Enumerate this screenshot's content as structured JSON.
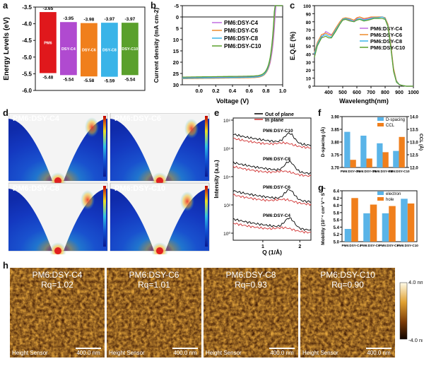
{
  "panel_labels": {
    "a": "a",
    "b": "b",
    "c": "c",
    "d": "d",
    "e": "e",
    "f": "f",
    "g": "g",
    "h": "h"
  },
  "chart_data": [
    {
      "panel": "a",
      "type": "bar",
      "ylabel": "Energy Levels (eV)",
      "ylim": [
        -6.0,
        -3.5
      ],
      "yticks": [
        "-3.5",
        "-4.0",
        "-4.5",
        "-5.0",
        "-5.5",
        "-6.0"
      ],
      "categories": [
        "PM6",
        "DSY-C4",
        "DSY-C6",
        "DSY-C8",
        "DSY-C10"
      ],
      "lumo": [
        -3.65,
        -3.95,
        -3.98,
        -3.97,
        -3.97
      ],
      "homo": [
        -5.48,
        -5.54,
        -5.58,
        -5.59,
        -5.54
      ],
      "lumo_labels": [
        "-3.65",
        "-3.95",
        "-3.98",
        "-3.97",
        "-3.97"
      ],
      "homo_labels": [
        "-5.48",
        "-5.54",
        "-5.58",
        "-5.59",
        "-5.54"
      ],
      "colors": [
        "#e0181c",
        "#b04ad0",
        "#f07f1c",
        "#3ab4e8",
        "#5aa02c"
      ]
    },
    {
      "panel": "b",
      "type": "line",
      "xlabel": "Voltage (V)",
      "ylabel": "Current density (mA cm-2)",
      "xlim": [
        -0.2,
        1.0
      ],
      "ylim": [
        30,
        -5
      ],
      "xticks": [
        "0.0",
        "0.2",
        "0.4",
        "0.6",
        "0.8",
        "1.0"
      ],
      "yticks": [
        "-5",
        "0",
        "5",
        "10",
        "15",
        "20",
        "25",
        "30"
      ],
      "series": [
        {
          "name": "PM6:DSY-C4",
          "color": "#c06ee0",
          "jsc": 26.8,
          "voc": 0.905
        },
        {
          "name": "PM6:DSY-C6",
          "color": "#ee8a2c",
          "jsc": 27.2,
          "voc": 0.898
        },
        {
          "name": "PM6:DSY-C8",
          "color": "#3ab4e8",
          "jsc": 27.0,
          "voc": 0.895
        },
        {
          "name": "PM6:DSY-C10",
          "color": "#5aa02c",
          "jsc": 26.5,
          "voc": 0.893
        }
      ]
    },
    {
      "panel": "c",
      "type": "line",
      "xlabel": "Wavelength(nm)",
      "ylabel": "E.Q.E (%)",
      "xlim": [
        300,
        1000
      ],
      "ylim": [
        0,
        100
      ],
      "xticks": [
        "400",
        "500",
        "600",
        "700",
        "800",
        "900",
        "1000"
      ],
      "yticks": [
        "0",
        "10",
        "20",
        "30",
        "40",
        "50",
        "60",
        "70",
        "80",
        "90",
        "100"
      ],
      "series": [
        {
          "name": "PM6:DSY-C4",
          "color": "#c06ee0"
        },
        {
          "name": "PM6:DSY-C6",
          "color": "#ee8a2c"
        },
        {
          "name": "PM6:DSY-C8",
          "color": "#3ab4e8"
        },
        {
          "name": "PM6:DSY-C10",
          "color": "#5aa02c"
        }
      ],
      "x": [
        300,
        320,
        350,
        380,
        400,
        420,
        450,
        480,
        500,
        520,
        550,
        580,
        600,
        620,
        650,
        680,
        700,
        720,
        750,
        780,
        800,
        820,
        840,
        860,
        880,
        900,
        920,
        950,
        1000
      ],
      "y": [
        [
          38,
          50,
          60,
          68,
          66,
          64,
          70,
          78,
          82,
          84,
          82,
          81,
          84,
          86,
          83,
          84,
          85,
          85,
          86,
          86,
          85,
          76,
          50,
          20,
          6,
          2,
          1,
          0,
          0
        ],
        [
          42,
          54,
          64,
          66,
          64,
          63,
          72,
          80,
          84,
          85,
          84,
          82,
          85,
          86,
          84,
          85,
          86,
          86,
          86,
          86,
          85,
          77,
          52,
          22,
          7,
          2,
          1,
          0,
          0
        ],
        [
          40,
          52,
          62,
          64,
          62,
          61,
          70,
          78,
          83,
          84,
          83,
          80,
          83,
          84,
          82,
          83,
          84,
          85,
          85,
          86,
          84,
          75,
          49,
          19,
          6,
          2,
          1,
          0,
          0
        ],
        [
          36,
          50,
          60,
          62,
          60,
          60,
          68,
          77,
          82,
          83,
          81,
          80,
          82,
          83,
          81,
          82,
          83,
          84,
          84,
          84,
          83,
          74,
          48,
          18,
          5,
          2,
          1,
          0,
          0
        ]
      ]
    },
    {
      "panel": "e",
      "type": "line",
      "xlabel": "Q (1/Å)",
      "ylabel": "Intensity (a.u.)",
      "yticks": [
        "10⁰",
        "10²",
        "10⁴",
        "10⁶",
        "10⁸"
      ],
      "xticks": [
        "1",
        "2"
      ],
      "series": [
        {
          "name": "Out of plane",
          "color": "#000000"
        },
        {
          "name": "In plane",
          "color": "#d03030"
        }
      ],
      "annotations": [
        "PM6:DSY-C10",
        "PM6:DSY-C8",
        "PM6:DSY-C6",
        "PM6:DSY-C4"
      ]
    },
    {
      "panel": "f",
      "type": "bar",
      "ylabel": "D-spacing (Å)",
      "ylabel_right": "CCL (Å)",
      "categories": [
        "PM6:DSY-C4",
        "PM6:DSY-C6",
        "PM6:DSY-C8",
        "PM6:DSY-C10"
      ],
      "ylim": [
        3.7,
        3.9
      ],
      "ylim_right": [
        12.0,
        14.0
      ],
      "yticks": [
        "3.70",
        "3.75",
        "3.80",
        "3.85",
        "3.90"
      ],
      "yticks_right": [
        "12.0",
        "12.5",
        "13.0",
        "13.5",
        "14.0"
      ],
      "series": [
        {
          "name": "D-spacing",
          "color": "#5ab4e8",
          "values": [
            3.84,
            3.825,
            3.795,
            3.765
          ]
        },
        {
          "name": "CCL",
          "color": "#f07f1c",
          "values": [
            12.3,
            12.35,
            12.6,
            13.2
          ]
        }
      ]
    },
    {
      "panel": "g",
      "type": "bar",
      "ylabel": "Mobility (10⁻⁴ cm² V⁻¹ S⁻¹)",
      "categories": [
        "PM6:DSY-C4",
        "PM6:DSY-C6",
        "PM6:DSY-C8",
        "PM6:DSY-C10"
      ],
      "ylim": [
        5.0,
        6.4
      ],
      "yticks": [
        "5.0",
        "5.2",
        "5.4",
        "5.6",
        "5.8",
        "6.0",
        "6.2",
        "6.4"
      ],
      "series": [
        {
          "name": "electron",
          "color": "#5ab4e8",
          "values": [
            5.35,
            5.78,
            5.78,
            6.18
          ]
        },
        {
          "name": "hole",
          "color": "#f07f1c",
          "values": [
            6.2,
            6.02,
            5.98,
            6.05
          ]
        }
      ]
    }
  ],
  "giwaxs": [
    {
      "title": "PM6:DSY-C4"
    },
    {
      "title": "PM6:DSY-C6"
    },
    {
      "title": "PM6:DSY-C8"
    },
    {
      "title": "PM6:DSY-C10"
    }
  ],
  "afm": {
    "images": [
      {
        "title": "PM6:DSY-C4",
        "rq": "Rq=1.02"
      },
      {
        "title": "PM6:DSY-C6",
        "rq": "Rq=1.01"
      },
      {
        "title": "PM6:DSY-C8",
        "rq": "Rq=0.93"
      },
      {
        "title": "PM6:DSY-C10",
        "rq": "Rq=0.90"
      }
    ],
    "sensor_label": "Height Sensor",
    "scale_bar": "400.0 nm",
    "colorbar_max": "4.0 nm",
    "colorbar_min": "-4.0 nm"
  }
}
